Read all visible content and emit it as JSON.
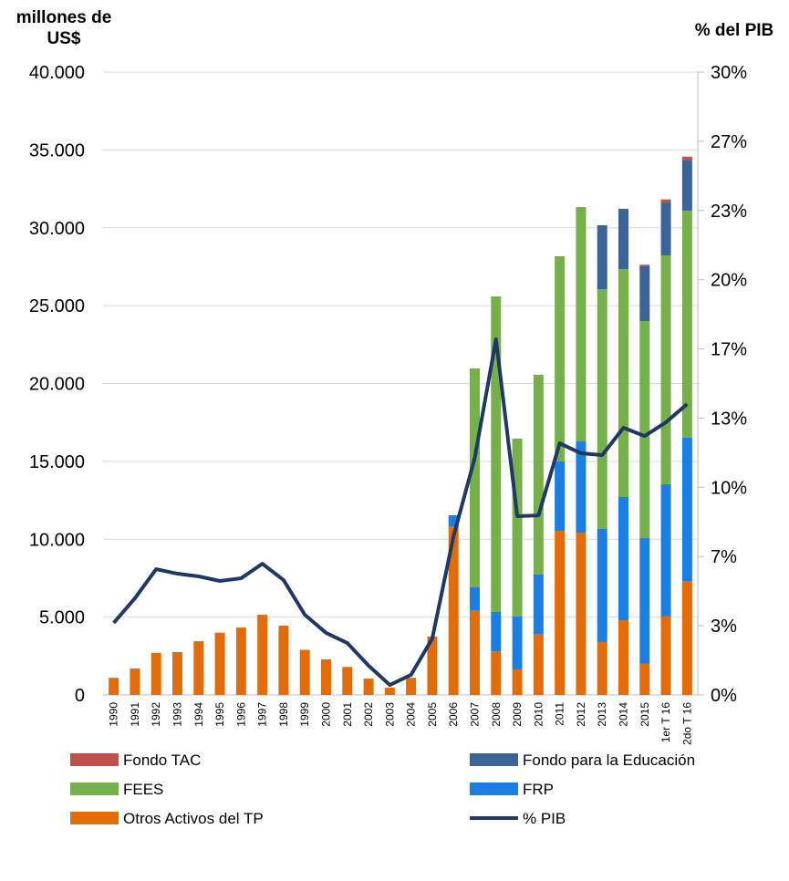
{
  "chart_data": {
    "type": "bar",
    "stacked": true,
    "y_label": "millones de US$",
    "y2_label": "% del PIB",
    "categories": [
      "1990",
      "1991",
      "1992",
      "1993",
      "1994",
      "1995",
      "1996",
      "1997",
      "1998",
      "1999",
      "2000",
      "2001",
      "2002",
      "2003",
      "2004",
      "2005",
      "2006",
      "2007",
      "2008",
      "2009",
      "2010",
      "2011",
      "2012",
      "2013",
      "2014",
      "2015",
      "1er T 16",
      "2do T 16"
    ],
    "ylim": [
      0,
      40000
    ],
    "yticks": [
      0,
      {
        "value": 5000,
        "label": "5.000"
      },
      {
        "value": 10000,
        "label": "10.000"
      },
      {
        "value": 15000,
        "label": "15.000"
      },
      {
        "value": 20000,
        "label": "20.000"
      },
      {
        "value": 25000,
        "label": "25.000"
      },
      {
        "value": 30000,
        "label": "30.000"
      },
      {
        "value": 35000,
        "label": "35.000"
      },
      {
        "value": 40000,
        "label": "40.000"
      }
    ],
    "y2lim": [
      0,
      30
    ],
    "y2ticks": [
      {
        "value": 0,
        "label": "0%"
      },
      {
        "value": 3.333,
        "label": "3%"
      },
      {
        "value": 6.667,
        "label": "7%"
      },
      {
        "value": 10,
        "label": "10%"
      },
      {
        "value": 13.333,
        "label": "13%"
      },
      {
        "value": 16.667,
        "label": "17%"
      },
      {
        "value": 20,
        "label": "20%"
      },
      {
        "value": 23.333,
        "label": "23%"
      },
      {
        "value": 26.667,
        "label": "27%"
      },
      {
        "value": 30,
        "label": "30%"
      }
    ],
    "grid": true,
    "series": [
      {
        "name": "Otros Activos del TP",
        "color": "#e36c0a",
        "values": [
          1100,
          1700,
          2700,
          2750,
          3450,
          4000,
          4330,
          5150,
          4450,
          2900,
          2280,
          1800,
          1050,
          470,
          1100,
          3750,
          10830,
          5450,
          2800,
          1640,
          3920,
          10540,
          10420,
          3400,
          4800,
          2000,
          5040,
          7320
        ]
      },
      {
        "name": "FRP",
        "color": "#1a7fe0",
        "values": [
          null,
          null,
          null,
          null,
          null,
          null,
          null,
          null,
          null,
          null,
          null,
          null,
          null,
          null,
          null,
          null,
          710,
          1460,
          2530,
          3400,
          3810,
          4450,
          5860,
          7260,
          7910,
          8070,
          8490,
          9200
        ]
      },
      {
        "name": "FEES",
        "color": "#77b04a",
        "values": [
          null,
          null,
          null,
          null,
          null,
          null,
          null,
          null,
          null,
          null,
          null,
          null,
          null,
          null,
          null,
          null,
          null,
          14060,
          20260,
          11420,
          12830,
          13180,
          15050,
          15400,
          14640,
          13940,
          14700,
          14580
        ]
      },
      {
        "name": "Fondo para la Educación",
        "color": "#3a6397",
        "values": [
          null,
          null,
          null,
          null,
          null,
          null,
          null,
          null,
          null,
          null,
          null,
          null,
          null,
          null,
          null,
          null,
          null,
          null,
          null,
          null,
          null,
          null,
          null,
          4100,
          3870,
          3520,
          3390,
          3220
        ]
      },
      {
        "name": "Fondo TAC",
        "color": "#c0504d",
        "values": [
          null,
          null,
          null,
          null,
          null,
          null,
          null,
          null,
          null,
          null,
          null,
          null,
          null,
          null,
          null,
          null,
          null,
          null,
          null,
          null,
          null,
          null,
          null,
          null,
          null,
          100,
          200,
          250
        ]
      },
      {
        "name": "% PIB",
        "color": "#1f3864",
        "type": "line",
        "axis": "y2",
        "values": [
          3.47,
          4.66,
          6.06,
          5.84,
          5.71,
          5.49,
          5.62,
          6.32,
          5.53,
          3.86,
          2.99,
          2.5,
          1.41,
          0.48,
          0.97,
          2.72,
          7.64,
          11.42,
          17.13,
          8.61,
          8.65,
          12.12,
          11.64,
          11.55,
          12.87,
          12.47,
          13.13,
          14.01
        ]
      }
    ]
  }
}
